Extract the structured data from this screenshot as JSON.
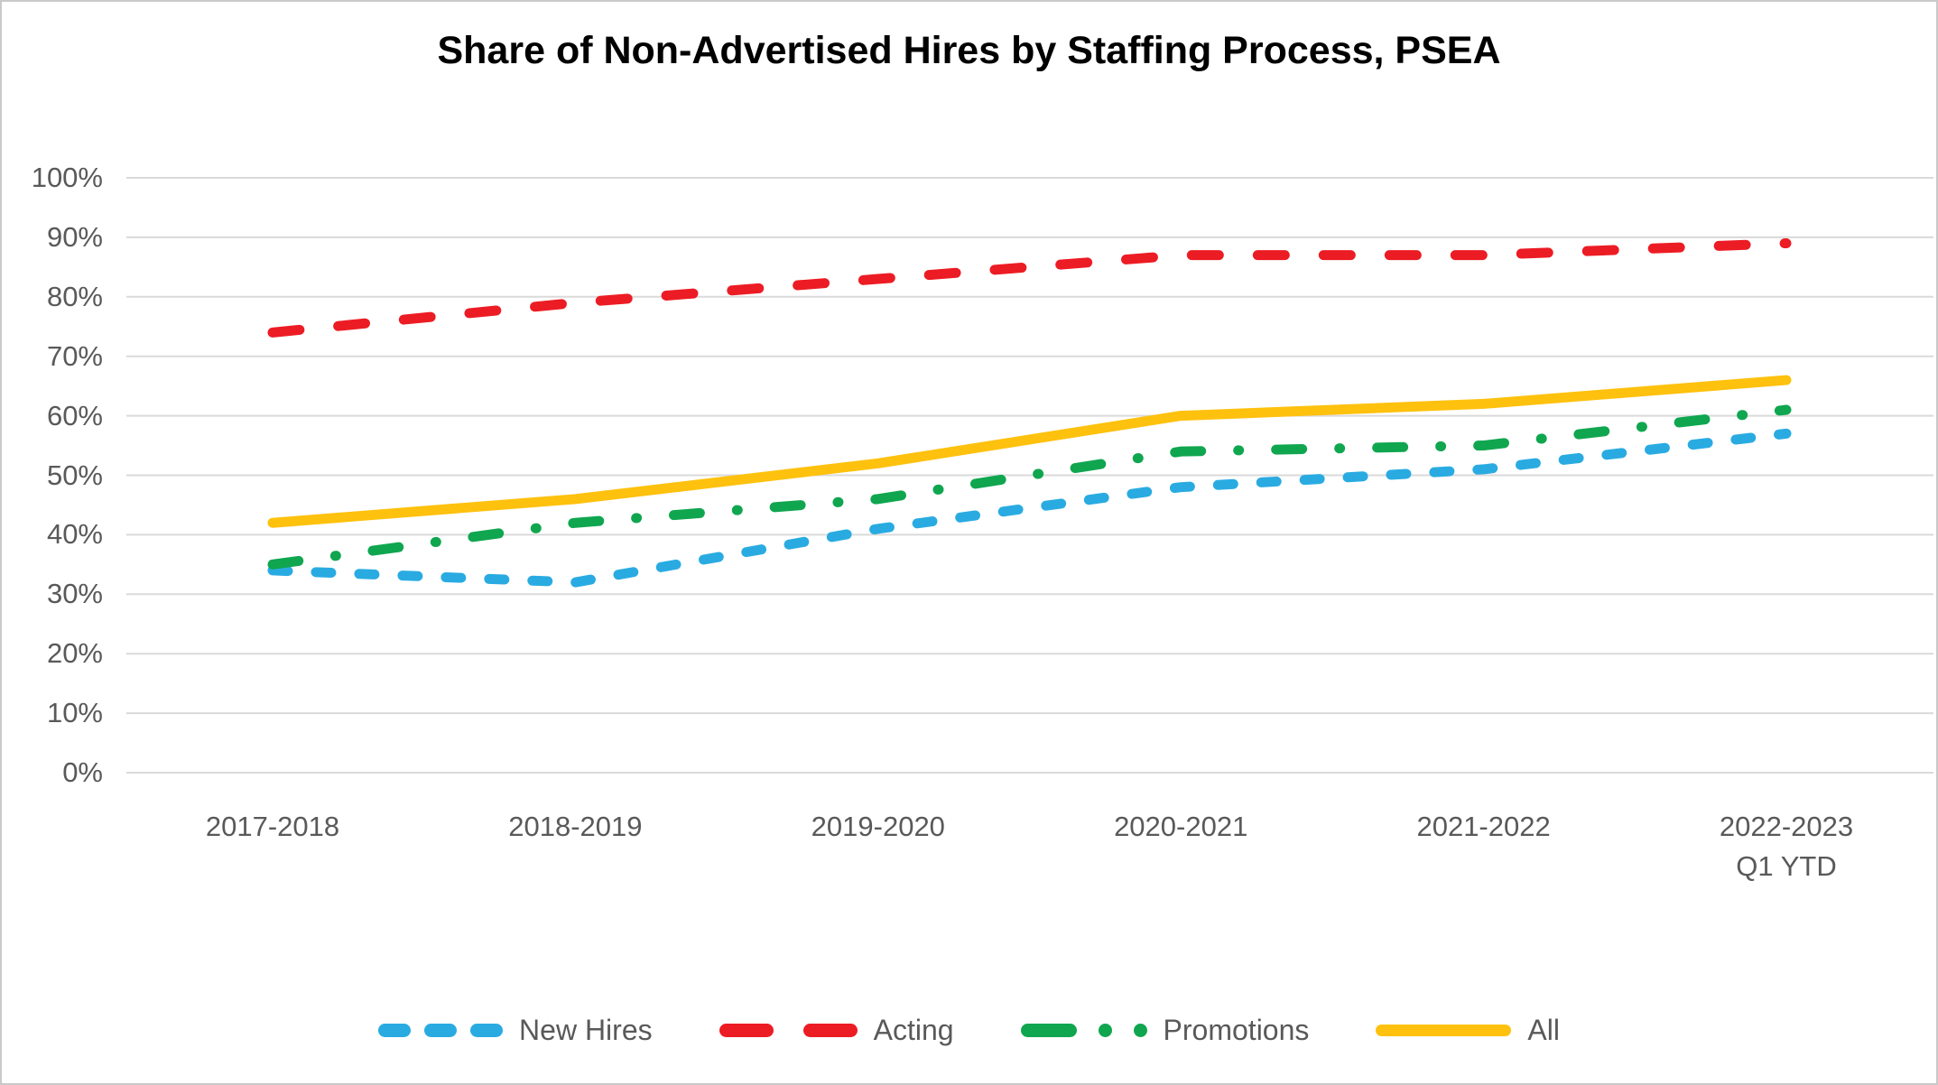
{
  "chart_data": {
    "type": "line",
    "title": "Share of Non-Advertised Hires by Staffing Process, PSEA",
    "categories": [
      [
        "2017-2018"
      ],
      [
        "2018-2019"
      ],
      [
        "2019-2020"
      ],
      [
        "2020-2021"
      ],
      [
        "2021-2022"
      ],
      [
        "2022-2023",
        "Q1 YTD"
      ]
    ],
    "series": [
      {
        "name": "New Hires",
        "color": "#29ABE2",
        "style": "short-dash",
        "values": [
          34,
          32,
          41,
          48,
          51,
          57
        ]
      },
      {
        "name": "Acting",
        "color": "#EC1C24",
        "style": "long-dash",
        "values": [
          74,
          79,
          83,
          87,
          87,
          89
        ]
      },
      {
        "name": "Promotions",
        "color": "#0FA64F",
        "style": "dash-dot",
        "values": [
          35,
          42,
          46,
          54,
          55,
          61
        ]
      },
      {
        "name": "All",
        "color": "#FEC10E",
        "style": "solid",
        "values": [
          42,
          46,
          52,
          60,
          62,
          66
        ]
      }
    ],
    "yticks": [
      "0%",
      "10%",
      "20%",
      "30%",
      "40%",
      "50%",
      "60%",
      "70%",
      "80%",
      "90%",
      "100%"
    ],
    "ylim": [
      0,
      100
    ],
    "grid": true,
    "gridline_color": "#DADADA",
    "axis_text_color": "#595959",
    "legend_position": "bottom"
  }
}
